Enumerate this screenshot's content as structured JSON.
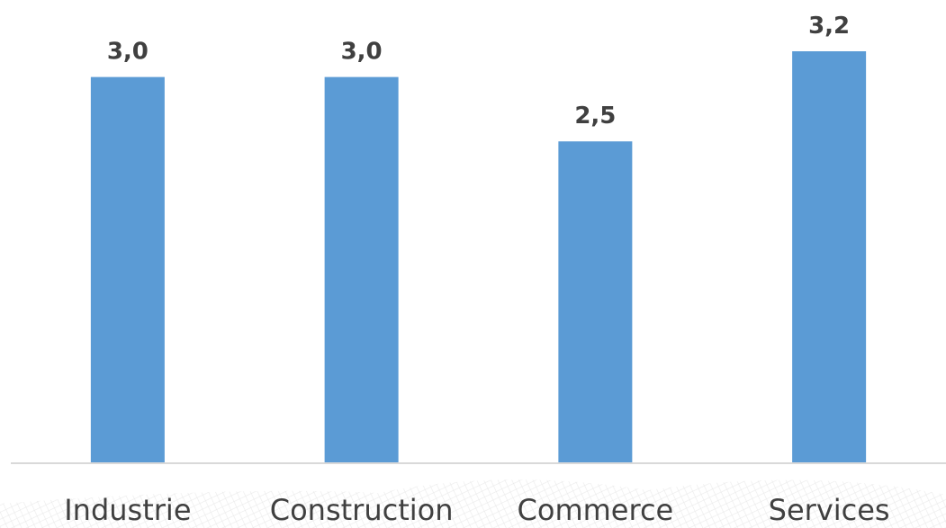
{
  "chart_data": {
    "type": "bar",
    "categories": [
      "Industrie",
      "Construction",
      "Commerce",
      "Services"
    ],
    "values": [
      3.0,
      3.0,
      2.5,
      3.2
    ],
    "data_labels": [
      "3,0",
      "3,0",
      "2,5",
      "3,2"
    ],
    "title": "",
    "xlabel": "",
    "ylabel": "",
    "ylim": [
      0,
      3.2
    ],
    "grid": false,
    "legend": "none",
    "bar_color": "#5B9BD5",
    "axis_color": "#D9D9D9",
    "text_color": "#404040"
  }
}
